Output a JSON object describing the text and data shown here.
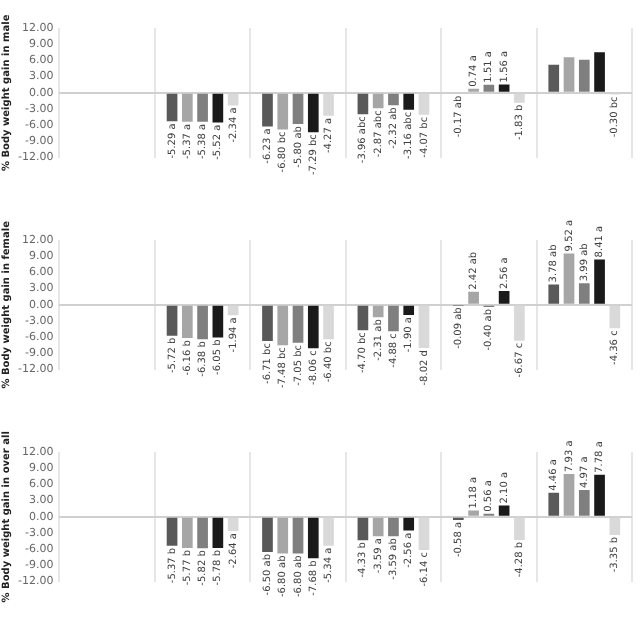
{
  "chart_data": [
    {
      "type": "bar",
      "ylabel": "% Body weight gain in male",
      "categories": [
        null,
        null,
        null,
        null,
        null,
        null
      ],
      "ylim": [
        -12,
        12
      ],
      "yticks": [
        {
          "value": -12,
          "label": "-12.00"
        },
        {
          "value": -9,
          "label": "-9.00"
        },
        {
          "value": -6,
          "label": "-6.00"
        },
        {
          "value": -3,
          "label": "-3.00"
        },
        {
          "value": 0,
          "label": "0.00"
        },
        {
          "value": 3,
          "label": "3.00"
        },
        {
          "value": 6,
          "label": "6.00"
        },
        {
          "value": 9,
          "label": "9.00"
        },
        {
          "value": 12,
          "label": "12.00"
        }
      ],
      "grid": "x",
      "legend": false,
      "series": [
        {
          "color": "#595959",
          "values": [
            0,
            -5.29,
            -6.23,
            -3.96,
            -0.17,
            5.2
          ],
          "value_labels": [
            null,
            "-5.29 a",
            "-6.23 a",
            "-3.96 abc",
            "-0.17 ab",
            null
          ]
        },
        {
          "color": "#a6a6a6",
          "values": [
            0,
            -5.37,
            -6.8,
            -2.87,
            0.74,
            6.6
          ],
          "value_labels": [
            null,
            "-5.37 a",
            "-6.80 bc",
            "-2.87 abc",
            "0.74 a",
            null
          ]
        },
        {
          "color": "#7f7f7f",
          "values": [
            0,
            -5.38,
            -5.8,
            -2.32,
            1.51,
            6.1
          ],
          "value_labels": [
            null,
            "-5.38 a",
            "-5.80 ab",
            "-2.32 ab",
            "1.51 a",
            null
          ]
        },
        {
          "color": "#1a1a1a",
          "values": [
            0,
            -5.52,
            -7.29,
            -3.16,
            1.56,
            7.5
          ],
          "value_labels": [
            null,
            "-5.52 a",
            "-7.29 bc",
            "-3.16 abc",
            "1.56 a",
            null
          ]
        },
        {
          "color": "#d9d9d9",
          "values": [
            0,
            -2.34,
            -4.27,
            -4.07,
            -1.83,
            -0.3
          ],
          "value_labels": [
            null,
            "-2.34 a",
            "-4.27 a",
            "-4.07 bc",
            "-1.83 b",
            "-0.30 bc"
          ]
        }
      ]
    },
    {
      "type": "bar",
      "ylabel": "% Body weight gain in female",
      "categories": [
        null,
        null,
        null,
        null,
        null,
        null
      ],
      "ylim": [
        -12,
        12
      ],
      "yticks": [
        {
          "value": -12,
          "label": "-12.00"
        },
        {
          "value": -9,
          "label": "-9.00"
        },
        {
          "value": -6,
          "label": "-6.00"
        },
        {
          "value": -3,
          "label": "-3.00"
        },
        {
          "value": 0,
          "label": "0.00"
        },
        {
          "value": 3,
          "label": "3.00"
        },
        {
          "value": 6,
          "label": "6.00"
        },
        {
          "value": 9,
          "label": "9.00"
        },
        {
          "value": 12,
          "label": "12.00"
        }
      ],
      "grid": "x",
      "legend": false,
      "series": [
        {
          "color": "#595959",
          "values": [
            0,
            -5.72,
            -6.71,
            -4.7,
            -0.09,
            3.78
          ],
          "value_labels": [
            null,
            "-5.72 b",
            "-6.71 bc",
            "-4.70 bc",
            "-0.09 ab",
            "3.78 ab"
          ]
        },
        {
          "color": "#a6a6a6",
          "values": [
            0,
            -6.16,
            -7.48,
            -2.31,
            2.42,
            9.52
          ],
          "value_labels": [
            null,
            "-6.16 b",
            "-7.48 bc",
            "-2.31 ab",
            "2.42 ab",
            "9.52 a"
          ]
        },
        {
          "color": "#7f7f7f",
          "values": [
            0,
            -6.38,
            -7.05,
            -4.88,
            -0.4,
            3.99
          ],
          "value_labels": [
            null,
            "-6.38 b",
            "-7.05 bc",
            "-4.88 c",
            "-0.40 ab",
            "3.99 ab"
          ]
        },
        {
          "color": "#1a1a1a",
          "values": [
            0,
            -6.05,
            -8.06,
            -1.9,
            2.56,
            8.41
          ],
          "value_labels": [
            null,
            "-6.05 b",
            "-8.06 c",
            "-1.90 a",
            "2.56 a",
            "8.41 a"
          ]
        },
        {
          "color": "#d9d9d9",
          "values": [
            0,
            -1.94,
            -6.4,
            -8.02,
            -6.67,
            -4.36
          ],
          "value_labels": [
            null,
            "-1.94 a",
            "-6.40 bc",
            "-8.02 d",
            "-6.67 c",
            "-4.36 c"
          ]
        }
      ]
    },
    {
      "type": "bar",
      "ylabel": "% Body weight gain in over all",
      "categories": [
        null,
        null,
        null,
        null,
        null,
        null
      ],
      "ylim": [
        -12,
        12
      ],
      "yticks": [
        {
          "value": -12,
          "label": "-12.00"
        },
        {
          "value": -9,
          "label": "-9.00"
        },
        {
          "value": -6,
          "label": "-6.00"
        },
        {
          "value": -3,
          "label": "-3.00"
        },
        {
          "value": 0,
          "label": "0.00"
        },
        {
          "value": 3,
          "label": "3.00"
        },
        {
          "value": 6,
          "label": "6.00"
        },
        {
          "value": 9,
          "label": "9.00"
        },
        {
          "value": 12,
          "label": "12.00"
        }
      ],
      "grid": "x",
      "legend": false,
      "series": [
        {
          "color": "#595959",
          "values": [
            0,
            -5.37,
            -6.5,
            -4.33,
            -0.58,
            4.46
          ],
          "value_labels": [
            null,
            "-5.37 b",
            "-6.50 ab",
            "-4.33 b",
            "-0.58 a",
            "4.46 a"
          ]
        },
        {
          "color": "#a6a6a6",
          "values": [
            0,
            -5.77,
            -6.8,
            -3.59,
            1.18,
            7.93
          ],
          "value_labels": [
            null,
            "-5.77 b",
            "-6.80 ab",
            "-3.59 a",
            "1.18 a",
            "7.93 a"
          ]
        },
        {
          "color": "#7f7f7f",
          "values": [
            0,
            -5.82,
            -6.8,
            -3.59,
            0.56,
            4.97
          ],
          "value_labels": [
            null,
            "-5.82 b",
            "-6.80 ab",
            "-3.59 ab",
            "0.56 a",
            "4.97 a"
          ]
        },
        {
          "color": "#1a1a1a",
          "values": [
            0,
            -5.78,
            -7.68,
            -2.56,
            2.1,
            7.78
          ],
          "value_labels": [
            null,
            "-5.78 b",
            "-7.68 b",
            "-2.56 a",
            "2.10 a",
            "7.78 a"
          ]
        },
        {
          "color": "#d9d9d9",
          "values": [
            0,
            -2.64,
            -5.34,
            -6.14,
            -4.28,
            -3.35
          ],
          "value_labels": [
            null,
            "-2.64 a",
            "-5.34 a",
            "-6.14 c",
            "-4.28 b",
            "-3.35 b"
          ]
        }
      ]
    }
  ]
}
